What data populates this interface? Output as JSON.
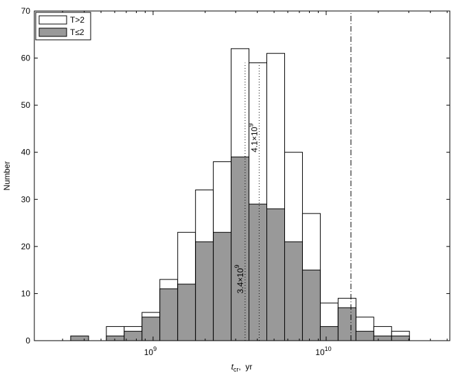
{
  "chart_data": {
    "type": "histogram",
    "ylabel": "Number",
    "xlabel": {
      "main": "t",
      "sub": "cr",
      "rest": ",  yr"
    },
    "xscale": "log",
    "xlim": [
      206000000,
      51800000000
    ],
    "ylim": [
      0,
      70
    ],
    "yticks": [
      0,
      10,
      20,
      30,
      40,
      50,
      60,
      70
    ],
    "xticks": [
      {
        "value": 1000000000,
        "label": "10",
        "exp": "9"
      },
      {
        "value": 10000000000,
        "label": "10",
        "exp": "10"
      }
    ],
    "xminorticks": [
      300000000,
      400000000,
      500000000,
      600000000,
      700000000,
      800000000,
      900000000,
      2000000000,
      3000000000,
      4000000000,
      5000000000,
      6000000000,
      7000000000,
      8000000000,
      9000000000,
      20000000000,
      30000000000,
      40000000000,
      50000000000
    ],
    "bins": [
      334000000,
      424000000,
      537000000,
      681000000,
      863000000,
      1094000000,
      1387000000,
      1758000000,
      2228000000,
      2825000000,
      3581000000,
      4539000000,
      5754000000,
      7295000000,
      9247000000,
      11720000000,
      14860000000,
      18840000000,
      23880000000,
      30270000000
    ],
    "series": [
      {
        "name": "T>2",
        "color": "#ffffff",
        "values": [
          0,
          0,
          3,
          3,
          6,
          13,
          23,
          32,
          38,
          62,
          59,
          61,
          40,
          27,
          8,
          9,
          5,
          3,
          2
        ]
      },
      {
        "name": "T≤2",
        "color": "#999999",
        "values": [
          1,
          0,
          1,
          2,
          5,
          11,
          12,
          21,
          23,
          39,
          29,
          28,
          21,
          15,
          3,
          7,
          2,
          1,
          1
        ]
      }
    ],
    "legend": "upper-left",
    "annotations": [
      {
        "value": 3400000000,
        "text": "3.4×10",
        "exp": "9",
        "style": "dotted",
        "y": 10
      },
      {
        "value": 4100000000,
        "text": "4.1×10",
        "exp": "9",
        "style": "dotted",
        "y": 40
      },
      {
        "value": 13900000000,
        "style": "dashdot"
      }
    ]
  }
}
